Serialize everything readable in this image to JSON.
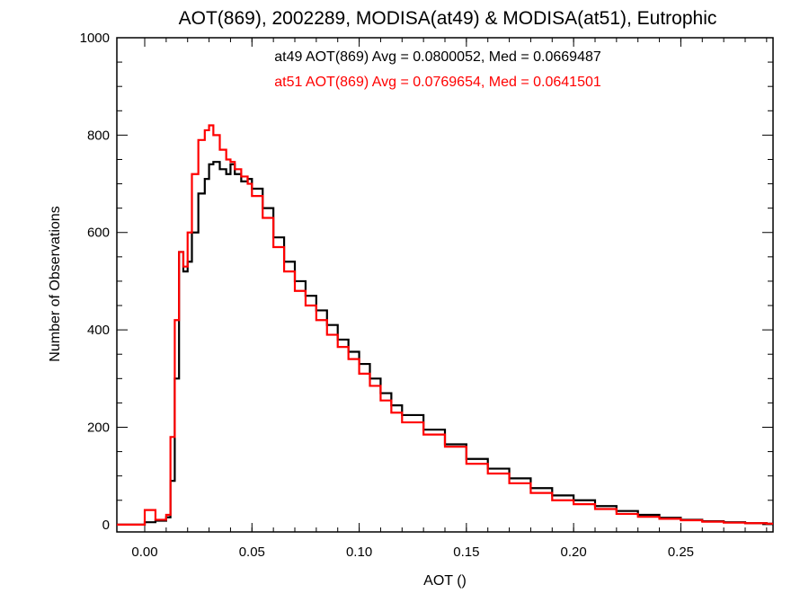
{
  "chart_data": {
    "type": "line",
    "title": "AOT(869), 2002289, MODISA(at49) & MODISA(at51), Eutrophic",
    "xlabel": "AOT ()",
    "ylabel": "Number of Observations",
    "xlim": [
      -0.013,
      0.293
    ],
    "ylim": [
      -15,
      1000
    ],
    "x_ticks": [
      0.0,
      0.05,
      0.1,
      0.15,
      0.2,
      0.25
    ],
    "x_tick_labels": [
      "0.00",
      "0.05",
      "0.10",
      "0.15",
      "0.20",
      "0.25"
    ],
    "y_ticks": [
      0,
      200,
      400,
      600,
      800,
      1000
    ],
    "y_tick_labels": [
      "0",
      "200",
      "400",
      "600",
      "800",
      "1000"
    ],
    "grid": false,
    "step": "histogram",
    "annotations": [
      {
        "text": "at49 AOT(869) Avg = 0.0800052, Med = 0.0669487",
        "color": "#000000"
      },
      {
        "text": "at51 AOT(869) Avg = 0.0769654, Med = 0.0641501",
        "color": "#ff0000"
      }
    ],
    "series": [
      {
        "color": "#000000",
        "x": [
          0.0,
          0.005,
          0.01,
          0.012,
          0.014,
          0.016,
          0.018,
          0.02,
          0.022,
          0.025,
          0.028,
          0.03,
          0.032,
          0.035,
          0.038,
          0.04,
          0.042,
          0.045,
          0.048,
          0.05,
          0.055,
          0.06,
          0.065,
          0.07,
          0.075,
          0.08,
          0.085,
          0.09,
          0.095,
          0.1,
          0.105,
          0.11,
          0.115,
          0.12,
          0.13,
          0.14,
          0.15,
          0.16,
          0.17,
          0.18,
          0.19,
          0.2,
          0.21,
          0.22,
          0.23,
          0.24,
          0.25,
          0.26,
          0.27,
          0.28,
          0.29
        ],
        "y": [
          5,
          8,
          15,
          90,
          300,
          560,
          520,
          540,
          600,
          680,
          710,
          740,
          745,
          730,
          720,
          740,
          720,
          705,
          710,
          690,
          650,
          590,
          540,
          500,
          470,
          440,
          410,
          380,
          355,
          330,
          300,
          270,
          245,
          225,
          195,
          165,
          135,
          115,
          95,
          75,
          60,
          50,
          38,
          28,
          20,
          14,
          10,
          7,
          5,
          3,
          2
        ]
      },
      {
        "color": "#ff0000",
        "x": [
          0.0,
          0.005,
          0.01,
          0.012,
          0.014,
          0.016,
          0.018,
          0.02,
          0.022,
          0.025,
          0.028,
          0.03,
          0.032,
          0.035,
          0.038,
          0.04,
          0.042,
          0.045,
          0.048,
          0.05,
          0.055,
          0.06,
          0.065,
          0.07,
          0.075,
          0.08,
          0.085,
          0.09,
          0.095,
          0.1,
          0.105,
          0.11,
          0.115,
          0.12,
          0.13,
          0.14,
          0.15,
          0.16,
          0.17,
          0.18,
          0.19,
          0.2,
          0.21,
          0.22,
          0.23,
          0.24,
          0.25,
          0.26,
          0.27,
          0.28,
          0.29
        ],
        "y": [
          30,
          10,
          20,
          180,
          420,
          560,
          530,
          600,
          720,
          790,
          810,
          820,
          800,
          770,
          750,
          745,
          730,
          715,
          700,
          675,
          630,
          570,
          520,
          480,
          450,
          420,
          390,
          365,
          340,
          310,
          285,
          255,
          230,
          210,
          185,
          160,
          125,
          105,
          85,
          65,
          50,
          42,
          32,
          22,
          16,
          12,
          9,
          6,
          4,
          3,
          2
        ]
      }
    ]
  }
}
